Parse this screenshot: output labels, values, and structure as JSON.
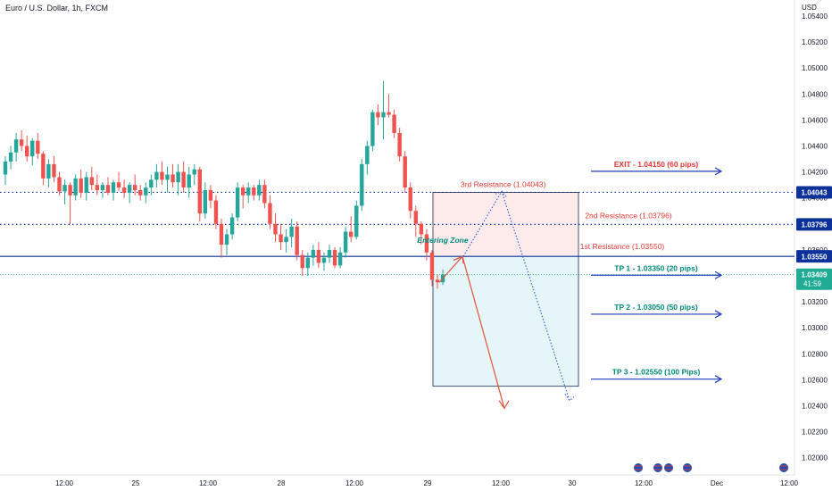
{
  "header": {
    "title": "Euro / U.S. Dollar, 1h, FXCM",
    "currency": "USD"
  },
  "chart_data": {
    "type": "candlestick",
    "symbol": "EURUSD",
    "ylim": [
      1.0192,
      1.0548
    ],
    "y_ticks": [
      "1.05400",
      "1.05200",
      "1.05000",
      "1.04800",
      "1.04600",
      "1.04400",
      "1.04200",
      "1.04000",
      "1.03800",
      "1.03600",
      "1.03400",
      "1.03200",
      "1.03000",
      "1.02800",
      "1.02600",
      "1.02400",
      "1.02200",
      "1.02000"
    ],
    "x_ticks": [
      "12:00",
      "25",
      "12:00",
      "28",
      "12:00",
      "29",
      "12:00",
      "30",
      "12:00",
      "Dec",
      "12:00"
    ],
    "up_color": "#26a69a",
    "down_color": "#ef5350",
    "candles": [
      [
        1.0418,
        1.0432,
        1.041,
        1.0428
      ],
      [
        1.0428,
        1.044,
        1.0422,
        1.0435
      ],
      [
        1.0435,
        1.045,
        1.0428,
        1.0445
      ],
      [
        1.0445,
        1.0452,
        1.0436,
        1.044
      ],
      [
        1.044,
        1.0448,
        1.0428,
        1.0432
      ],
      [
        1.0432,
        1.0446,
        1.0425,
        1.0444
      ],
      [
        1.0444,
        1.045,
        1.043,
        1.0434
      ],
      [
        1.0434,
        1.0436,
        1.041,
        1.0415
      ],
      [
        1.0415,
        1.043,
        1.0408,
        1.0426
      ],
      [
        1.0426,
        1.0432,
        1.0412,
        1.0416
      ],
      [
        1.0416,
        1.042,
        1.0402,
        1.0405
      ],
      [
        1.0405,
        1.0414,
        1.0395,
        1.041
      ],
      [
        1.041,
        1.0412,
        1.038,
        1.0402
      ],
      [
        1.0402,
        1.0418,
        1.0398,
        1.0415
      ],
      [
        1.0415,
        1.0422,
        1.04,
        1.0404
      ],
      [
        1.0404,
        1.042,
        1.0398,
        1.0416
      ],
      [
        1.0416,
        1.0424,
        1.0406,
        1.041
      ],
      [
        1.041,
        1.0418,
        1.0402,
        1.0406
      ],
      [
        1.0406,
        1.0412,
        1.04,
        1.041
      ],
      [
        1.041,
        1.0416,
        1.0402,
        1.0404
      ],
      [
        1.0404,
        1.0414,
        1.0398,
        1.0412
      ],
      [
        1.0412,
        1.042,
        1.0405,
        1.0408
      ],
      [
        1.0408,
        1.0414,
        1.04,
        1.0404
      ],
      [
        1.0404,
        1.0412,
        1.0396,
        1.041
      ],
      [
        1.041,
        1.0418,
        1.0402,
        1.0406
      ],
      [
        1.0406,
        1.041,
        1.0398,
        1.0402
      ],
      [
        1.0402,
        1.0412,
        1.0396,
        1.0408
      ],
      [
        1.0408,
        1.0418,
        1.0402,
        1.0414
      ],
      [
        1.0414,
        1.0426,
        1.0408,
        1.042
      ],
      [
        1.042,
        1.0428,
        1.041,
        1.0414
      ],
      [
        1.0414,
        1.0424,
        1.0404,
        1.0418
      ],
      [
        1.0418,
        1.0426,
        1.0408,
        1.0412
      ],
      [
        1.0412,
        1.0426,
        1.0402,
        1.042
      ],
      [
        1.042,
        1.0428,
        1.0404,
        1.0408
      ],
      [
        1.0408,
        1.0424,
        1.04,
        1.0418
      ],
      [
        1.0418,
        1.0426,
        1.041,
        1.0422
      ],
      [
        1.0422,
        1.0424,
        1.0382,
        1.0388
      ],
      [
        1.0388,
        1.0412,
        1.0384,
        1.0406
      ],
      [
        1.0406,
        1.041,
        1.0392,
        1.0398
      ],
      [
        1.0398,
        1.0402,
        1.0376,
        1.038
      ],
      [
        1.038,
        1.0384,
        1.0354,
        1.0364
      ],
      [
        1.0364,
        1.0376,
        1.0356,
        1.0372
      ],
      [
        1.0372,
        1.0388,
        1.0368,
        1.0385
      ],
      [
        1.0385,
        1.0412,
        1.0382,
        1.0408
      ],
      [
        1.0408,
        1.041,
        1.0392,
        1.0402
      ],
      [
        1.0402,
        1.0412,
        1.0396,
        1.0408
      ],
      [
        1.0408,
        1.041,
        1.0398,
        1.0402
      ],
      [
        1.0402,
        1.0414,
        1.0398,
        1.041
      ],
      [
        1.041,
        1.0414,
        1.0392,
        1.0396
      ],
      [
        1.0396,
        1.0402,
        1.0376,
        1.038
      ],
      [
        1.038,
        1.0388,
        1.0366,
        1.0372
      ],
      [
        1.0372,
        1.038,
        1.036,
        1.0366
      ],
      [
        1.0366,
        1.0376,
        1.0358,
        1.037
      ],
      [
        1.037,
        1.0384,
        1.0362,
        1.0378
      ],
      [
        1.0378,
        1.0382,
        1.0352,
        1.0356
      ],
      [
        1.0356,
        1.036,
        1.034,
        1.0346
      ],
      [
        1.0346,
        1.0358,
        1.034,
        1.0354
      ],
      [
        1.0354,
        1.0364,
        1.0348,
        1.036
      ],
      [
        1.036,
        1.0366,
        1.0346,
        1.035
      ],
      [
        1.035,
        1.0358,
        1.0344,
        1.0354
      ],
      [
        1.0354,
        1.0364,
        1.035,
        1.036
      ],
      [
        1.036,
        1.0362,
        1.0346,
        1.0348
      ],
      [
        1.0348,
        1.0362,
        1.0346,
        1.0358
      ],
      [
        1.0358,
        1.0378,
        1.0354,
        1.0374
      ],
      [
        1.0374,
        1.0386,
        1.0366,
        1.037
      ],
      [
        1.037,
        1.0398,
        1.0368,
        1.0394
      ],
      [
        1.0394,
        1.043,
        1.039,
        1.0426
      ],
      [
        1.0426,
        1.0444,
        1.0418,
        1.044
      ],
      [
        1.044,
        1.0468,
        1.0436,
        1.0466
      ],
      [
        1.0466,
        1.0472,
        1.0456,
        1.0462
      ],
      [
        1.0462,
        1.049,
        1.0445,
        1.0466
      ],
      [
        1.0466,
        1.048,
        1.0462,
        1.0464
      ],
      [
        1.0464,
        1.0468,
        1.0446,
        1.045
      ],
      [
        1.045,
        1.0454,
        1.0428,
        1.0432
      ],
      [
        1.0432,
        1.0436,
        1.0404,
        1.0408
      ],
      [
        1.0408,
        1.0412,
        1.0384,
        1.039
      ],
      [
        1.039,
        1.0394,
        1.037,
        1.038
      ],
      [
        1.038,
        1.0382,
        1.0364,
        1.0372
      ],
      [
        1.0372,
        1.0376,
        1.0352,
        1.0358
      ],
      [
        1.0358,
        1.036,
        1.0332,
        1.0337
      ],
      [
        1.0337,
        1.0341,
        1.033,
        1.0335
      ],
      [
        1.0335,
        1.0345,
        1.0333,
        1.0341
      ]
    ],
    "levels": [
      {
        "name": "3rd Resistance (1.04043)",
        "price": 1.04043,
        "badge": "1.04043",
        "style": "dotted",
        "color": "#0c3299"
      },
      {
        "name": "2nd Resistance (1.03796)",
        "price": 1.03796,
        "badge": "1.03796",
        "style": "dotted",
        "color": "#0c3299"
      },
      {
        "name": "1st Resistance (1.03550)",
        "price": 1.0355,
        "badge": "1.03550",
        "style": "solid",
        "color": "#0c3299"
      }
    ],
    "current_price": {
      "value": "1.03409",
      "countdown": "41:59",
      "color": "#22ab94"
    },
    "targets": [
      {
        "label": "EXIT - 1.04150 (60 pips)",
        "price": 1.0415,
        "color": "#e53935",
        "arrow_color": "#1e3fb8"
      },
      {
        "label": "TP 1 - 1.03350 (20 pips)",
        "price": 1.0335,
        "color": "#00897b",
        "arrow_color": "#1e3fb8"
      },
      {
        "label": "TP 2 - 1.03050 (50 pips)",
        "price": 1.0305,
        "color": "#00897b",
        "arrow_color": "#1e3fb8"
      },
      {
        "label": "TP 3 - 1.02550 (100 Pips)",
        "price": 1.0255,
        "color": "#00897b",
        "arrow_color": "#1e3fb8"
      }
    ],
    "annotations": {
      "entering_zone": "Entering Zone",
      "resistance_labels": [
        "3rd Resistance (1.04043)",
        "2nd Resistance (1.03796)",
        "1st Resistance (1.03550)"
      ]
    },
    "position_box": {
      "entry": 1.0355,
      "stop": 1.04043,
      "target": 1.0255
    },
    "paths": {
      "red": [
        [
          1.0335,
          1.0355
        ],
        [
          1.0355,
          1.0238
        ]
      ],
      "blue": [
        [
          1.0355,
          1.0405
        ],
        [
          1.0405,
          1.0244
        ]
      ]
    }
  }
}
